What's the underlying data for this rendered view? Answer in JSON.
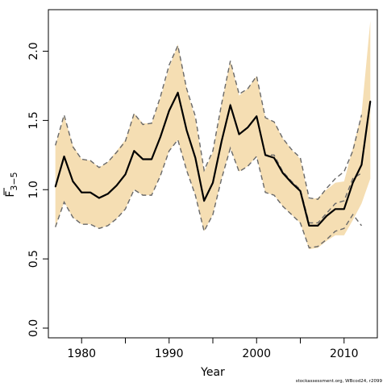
{
  "chart_data": {
    "type": "line",
    "xlabel": "Year",
    "ylabel_main": "F",
    "ylabel_sub": "3−5",
    "xlim": [
      1976.2,
      2013.8
    ],
    "ylim": [
      -0.07,
      2.3
    ],
    "x_ticks": [
      1980,
      1990,
      2000,
      2010
    ],
    "x_minor_ticks": [
      1985,
      1995,
      2005
    ],
    "y_ticks": [
      0.0,
      0.5,
      1.0,
      1.5,
      2.0
    ],
    "y_tick_labels": [
      "0.0",
      "0.5",
      "1.0",
      "1.5",
      "2.0"
    ],
    "grid": false,
    "colors": {
      "band": "#f5deb3",
      "estimate": "#000000",
      "retro": "#696969",
      "frame": "#000000"
    },
    "series": [
      {
        "role": "estimate",
        "x": [
          1977,
          1978,
          1979,
          1980,
          1981,
          1982,
          1983,
          1984,
          1985,
          1986,
          1987,
          1988,
          1989,
          1990,
          1991,
          1992,
          1993,
          1994,
          1995,
          1996,
          1997,
          1998,
          1999,
          2000,
          2001,
          2002,
          2003,
          2004,
          2005,
          2006,
          2007,
          2008,
          2009,
          2010,
          2011,
          2012,
          2013
        ],
        "y": [
          1.02,
          1.24,
          1.06,
          0.98,
          0.98,
          0.94,
          0.97,
          1.03,
          1.11,
          1.28,
          1.22,
          1.22,
          1.38,
          1.57,
          1.7,
          1.43,
          1.23,
          0.92,
          1.05,
          1.35,
          1.61,
          1.4,
          1.45,
          1.53,
          1.25,
          1.23,
          1.12,
          1.05,
          0.99,
          0.74,
          0.74,
          0.81,
          0.86,
          0.86,
          1.05,
          1.18,
          1.64
        ]
      },
      {
        "role": "upper-interval",
        "x": [
          1977,
          1978,
          1979,
          1980,
          1981,
          1982,
          1983,
          1984,
          1985,
          1986,
          1987,
          1988,
          1989,
          1990,
          1991,
          1992,
          1993,
          1994,
          1995,
          1996,
          1997,
          1998,
          1999,
          2000,
          2001,
          2002,
          2003,
          2004,
          2005,
          2006,
          2007,
          2008,
          2009,
          2010,
          2011,
          2012,
          2013
        ],
        "y": [
          1.32,
          1.53,
          1.32,
          1.22,
          1.21,
          1.16,
          1.2,
          1.28,
          1.36,
          1.55,
          1.48,
          1.48,
          1.66,
          1.88,
          2.05,
          1.73,
          1.51,
          1.13,
          1.27,
          1.62,
          1.93,
          1.68,
          1.73,
          1.82,
          1.52,
          1.49,
          1.37,
          1.29,
          1.22,
          0.93,
          0.94,
          1.0,
          1.05,
          1.06,
          1.3,
          1.55,
          2.22
        ]
      },
      {
        "role": "lower-interval",
        "x": [
          1977,
          1978,
          1979,
          1980,
          1981,
          1982,
          1983,
          1984,
          1985,
          1986,
          1987,
          1988,
          1989,
          1990,
          1991,
          1992,
          1993,
          1994,
          1995,
          1996,
          1997,
          1998,
          1999,
          2000,
          2001,
          2002,
          2003,
          2004,
          2005,
          2006,
          2007,
          2008,
          2009,
          2010,
          2011,
          2012,
          2013
        ],
        "y": [
          0.73,
          0.91,
          0.8,
          0.75,
          0.75,
          0.72,
          0.74,
          0.79,
          0.86,
          1.0,
          0.96,
          0.96,
          1.1,
          1.28,
          1.36,
          1.14,
          0.96,
          0.7,
          0.82,
          1.08,
          1.3,
          1.13,
          1.17,
          1.24,
          0.98,
          0.96,
          0.88,
          0.82,
          0.76,
          0.57,
          0.58,
          0.63,
          0.67,
          0.67,
          0.78,
          0.9,
          1.08
        ]
      },
      {
        "role": "retro-upper",
        "x": [
          1977,
          1978,
          1979,
          1980,
          1981,
          1982,
          1983,
          1984,
          1985,
          1986,
          1987,
          1988,
          1989,
          1990,
          1991,
          1992,
          1993,
          1994,
          1995,
          1996,
          1997,
          1998,
          1999,
          2000,
          2001,
          2002,
          2003,
          2004,
          2005,
          2006,
          2007,
          2008,
          2009,
          2010,
          2011,
          2012
        ],
        "y": [
          1.32,
          1.54,
          1.31,
          1.22,
          1.21,
          1.16,
          1.2,
          1.27,
          1.35,
          1.55,
          1.47,
          1.48,
          1.67,
          1.9,
          2.04,
          1.73,
          1.53,
          1.14,
          1.28,
          1.62,
          1.93,
          1.69,
          1.73,
          1.82,
          1.52,
          1.49,
          1.37,
          1.29,
          1.23,
          0.94,
          0.93,
          1.01,
          1.08,
          1.13,
          1.28,
          1.54
        ]
      },
      {
        "role": "retro-mid",
        "x": [
          1977,
          1978,
          1979,
          1980,
          1981,
          1982,
          1983,
          1984,
          1985,
          1986,
          1987,
          1988,
          1989,
          1990,
          1991,
          1992,
          1993,
          1994,
          1995,
          1996,
          1997,
          1998,
          1999,
          2000,
          2001,
          2002,
          2003,
          2004,
          2005,
          2006,
          2007,
          2008,
          2009,
          2010,
          2011,
          2012
        ],
        "y": [
          1.02,
          1.24,
          1.06,
          0.98,
          0.98,
          0.94,
          0.97,
          1.03,
          1.11,
          1.28,
          1.22,
          1.22,
          1.38,
          1.57,
          1.7,
          1.43,
          1.23,
          0.92,
          1.05,
          1.35,
          1.61,
          1.4,
          1.45,
          1.53,
          1.25,
          1.25,
          1.13,
          1.06,
          1.0,
          0.76,
          0.76,
          0.83,
          0.9,
          0.92,
          1.08,
          1.12
        ]
      },
      {
        "role": "retro-lower",
        "x": [
          1977,
          1978,
          1979,
          1980,
          1981,
          1982,
          1983,
          1984,
          1985,
          1986,
          1987,
          1988,
          1989,
          1990,
          1991,
          1992,
          1993,
          1994,
          1995,
          1996,
          1997,
          1998,
          1999,
          2000,
          2001,
          2002,
          2003,
          2004,
          2005,
          2006,
          2007,
          2008,
          2009,
          2010,
          2011,
          2012
        ],
        "y": [
          0.73,
          0.91,
          0.8,
          0.75,
          0.75,
          0.72,
          0.74,
          0.79,
          0.86,
          1.0,
          0.96,
          0.96,
          1.1,
          1.28,
          1.36,
          1.14,
          0.96,
          0.7,
          0.82,
          1.08,
          1.3,
          1.13,
          1.17,
          1.24,
          0.98,
          0.96,
          0.88,
          0.82,
          0.76,
          0.58,
          0.59,
          0.64,
          0.7,
          0.72,
          0.82,
          0.74
        ]
      }
    ]
  },
  "credit": "stockassessment.org, WBcod24, r2099"
}
